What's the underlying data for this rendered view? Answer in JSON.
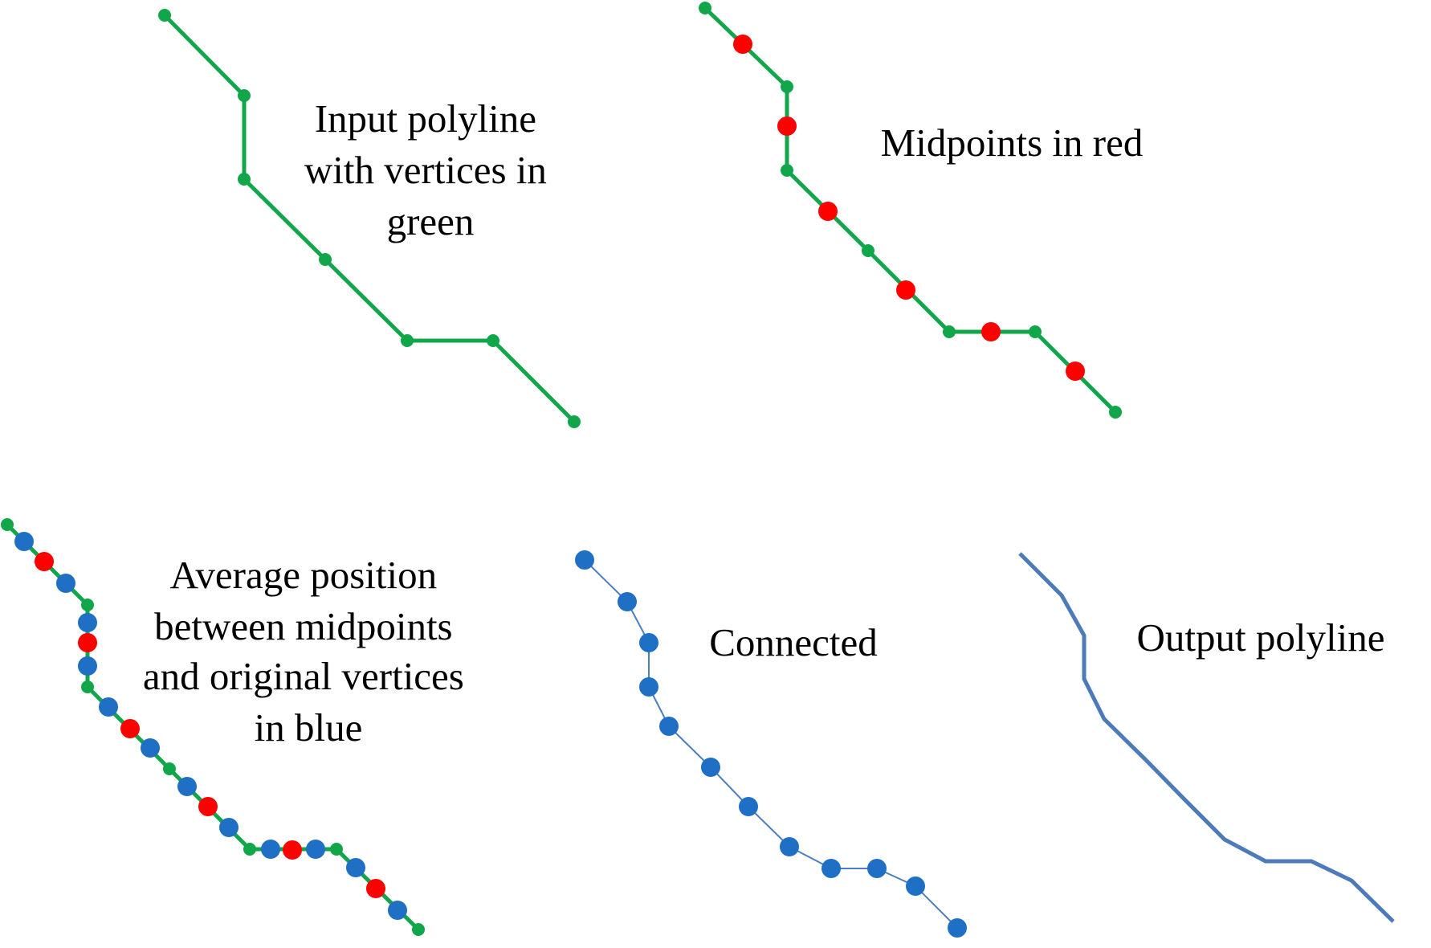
{
  "colors": {
    "vertex": "#12a64a",
    "midpoint": "#ff0000",
    "average": "#1f6fc4",
    "output_line": "#4d7ab8",
    "connected_line": "#4a7fc0"
  },
  "panels": {
    "input": {
      "caption_lines": [
        "Input polyline",
        "with vertices in",
        "green"
      ]
    },
    "midpoints": {
      "caption_lines": [
        "Midpoints in red"
      ]
    },
    "average": {
      "caption_lines": [
        "Average position",
        "between midpoints",
        "and original vertices",
        "in blue"
      ]
    },
    "connected": {
      "caption_lines": [
        "Connected"
      ]
    },
    "output": {
      "caption_lines": [
        "Output polyline"
      ]
    }
  }
}
